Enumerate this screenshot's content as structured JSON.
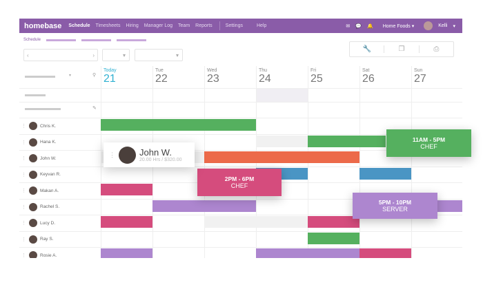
{
  "nav": {
    "logo": "homebase",
    "links": [
      "Schedule",
      "Timesheets",
      "Hiring",
      "Manager Log",
      "Team",
      "Reports"
    ],
    "settings": "Settings",
    "help": "Help",
    "location": "Home Foods ▾",
    "user": "Kelli"
  },
  "subnav": {
    "label": "Schedule"
  },
  "toolbar": {
    "prev": "‹",
    "next": "›",
    "caret": "▾",
    "icons": [
      "wrench-icon",
      "copy-icon",
      "print-icon"
    ]
  },
  "days": [
    {
      "w": "Today",
      "n": "21",
      "today": true
    },
    {
      "w": "Tue",
      "n": "22"
    },
    {
      "w": "Wed",
      "n": "23"
    },
    {
      "w": "Thu",
      "n": "24"
    },
    {
      "w": "Fri",
      "n": "25"
    },
    {
      "w": "Sat",
      "n": "26"
    },
    {
      "w": "Sun",
      "n": "27"
    }
  ],
  "colors": {
    "green": "#55b05f",
    "orange": "#ec6a4a",
    "blue": "#4a95c4",
    "pink": "#d54c7d",
    "purple": "#ad86cf",
    "gray": "#f1f1f1",
    "brand": "#8a5ca8",
    "today": "#2eb0d1"
  },
  "employees": [
    {
      "name": "Chris K.",
      "shifts": [
        {
          "d": 0,
          "len": 3,
          "c": "green"
        }
      ]
    },
    {
      "name": "Hana K.",
      "shifts": [
        {
          "d": 3,
          "len": 1,
          "c": "gray"
        },
        {
          "d": 4,
          "len": 1.5,
          "c": "green"
        }
      ]
    },
    {
      "name": "John W.",
      "shifts": [
        {
          "d": 0,
          "len": 2,
          "c": "gray"
        },
        {
          "d": 2,
          "len": 3,
          "c": "orange"
        }
      ]
    },
    {
      "name": "Keyvan R.",
      "shifts": [
        {
          "d": 3,
          "len": 1,
          "c": "blue"
        },
        {
          "d": 5,
          "len": 1,
          "c": "blue"
        }
      ]
    },
    {
      "name": "Makan A.",
      "shifts": [
        {
          "d": 0,
          "len": 1,
          "c": "pink"
        }
      ]
    },
    {
      "name": "Rachel S.",
      "shifts": [
        {
          "d": 1,
          "len": 2,
          "c": "purple"
        },
        {
          "d": 6,
          "len": 1,
          "c": "purple"
        }
      ]
    },
    {
      "name": "Lucy D.",
      "shifts": [
        {
          "d": 0,
          "len": 1,
          "c": "pink"
        },
        {
          "d": 2,
          "len": 2,
          "c": "gray"
        },
        {
          "d": 4,
          "len": 1,
          "c": "pink"
        }
      ]
    },
    {
      "name": "Ray S.",
      "shifts": [
        {
          "d": 4,
          "len": 1,
          "c": "green"
        }
      ]
    },
    {
      "name": "Rosie A.",
      "shifts": [
        {
          "d": 0,
          "len": 1,
          "c": "purple"
        },
        {
          "d": 3,
          "len": 2,
          "c": "purple"
        },
        {
          "d": 5,
          "len": 1,
          "c": "pink"
        }
      ]
    }
  ],
  "drag_card": {
    "name": "John W.",
    "detail": "20.00 Hrs / $320.00"
  },
  "popups": [
    {
      "time": "11AM - 5PM",
      "role": "CHEF",
      "c": "green"
    },
    {
      "time": "2PM - 6PM",
      "role": "CHEF",
      "c": "pink"
    },
    {
      "time": "5PM - 10PM",
      "role": "SERVER",
      "c": "purple"
    }
  ]
}
